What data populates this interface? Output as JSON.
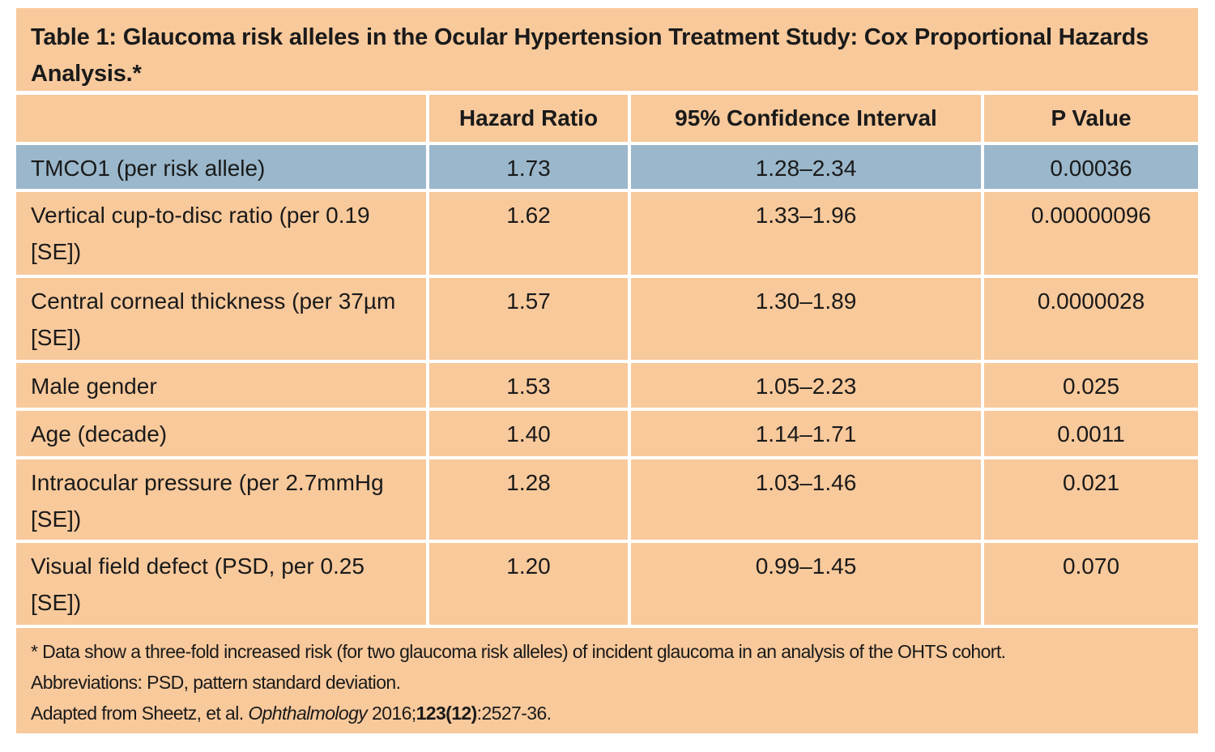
{
  "title": "Table 1: Glaucoma risk alleles in the Ocular Hypertension Treatment Study: Cox Proportional Hazards Analysis.*",
  "columns": [
    "",
    "Hazard Ratio",
    "95% Confidence Interval",
    "P Value"
  ],
  "highlight_color": "#9ab7cb",
  "background_color": "#f8c99b",
  "rows": [
    {
      "label": "TMCO1 (per risk allele)",
      "hr": "1.73",
      "ci": "1.28–2.34",
      "p": "0.00036",
      "highlighted": true
    },
    {
      "label": "Vertical cup-to-disc ratio (per 0.19 [SE])",
      "hr": "1.62",
      "ci": "1.33–1.96",
      "p": "0.00000096"
    },
    {
      "label": "Central corneal thickness (per 37µm [SE])",
      "hr": "1.57",
      "ci": "1.30–1.89",
      "p": "0.0000028"
    },
    {
      "label": "Male gender",
      "hr": "1.53",
      "ci": "1.05–2.23",
      "p": "0.025"
    },
    {
      "label": "Age (decade)",
      "hr": "1.40",
      "ci": "1.14–1.71",
      "p": "0.0011"
    },
    {
      "label": "Intraocular pressure (per 2.7mmHg [SE])",
      "hr": "1.28",
      "ci": "1.03–1.46",
      "p": "0.021"
    },
    {
      "label": "Visual field defect (PSD, per 0.25 [SE])",
      "hr": "1.20",
      "ci": "0.99–1.45",
      "p": "0.070"
    }
  ],
  "footnote": {
    "line1": "* Data show a three-fold increased risk (for two glaucoma risk alleles) of incident glaucoma in an analysis of the OHTS cohort.",
    "line2": "Abbreviations: PSD, pattern standard deviation.",
    "line3_prefix": "Adapted from Sheetz, et al. ",
    "journal": "Ophthalmology",
    "year": " 2016;",
    "volume": "123(12)",
    "pages": ":2527-36."
  }
}
